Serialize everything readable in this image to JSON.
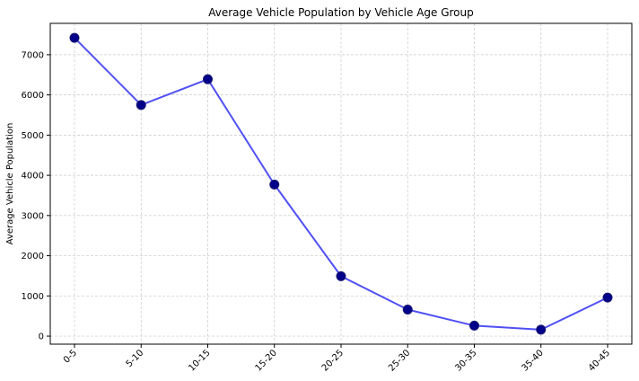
{
  "chart_data": {
    "type": "line",
    "title": "Average Vehicle Population by Vehicle Age Group",
    "xlabel": "",
    "ylabel": "Average Vehicle Population",
    "categories": [
      "0-5",
      "5-10",
      "10-15",
      "15-20",
      "20-25",
      "25-30",
      "30-35",
      "35-40",
      "40-45"
    ],
    "series": [
      {
        "values": [
          7420,
          5750,
          6390,
          3770,
          1490,
          660,
          260,
          160,
          960
        ]
      }
    ],
    "ylim": [
      -200,
      7780
    ],
    "yticks": [
      0,
      1000,
      2000,
      3000,
      4000,
      5000,
      6000,
      7000
    ],
    "grid": true,
    "legend": "none",
    "colors": {
      "line": "#5050f5",
      "marker_fill": "#00008b",
      "marker_edge": "#1a1a6e",
      "grid": "#c8c8c8",
      "axes": "#000000"
    }
  }
}
